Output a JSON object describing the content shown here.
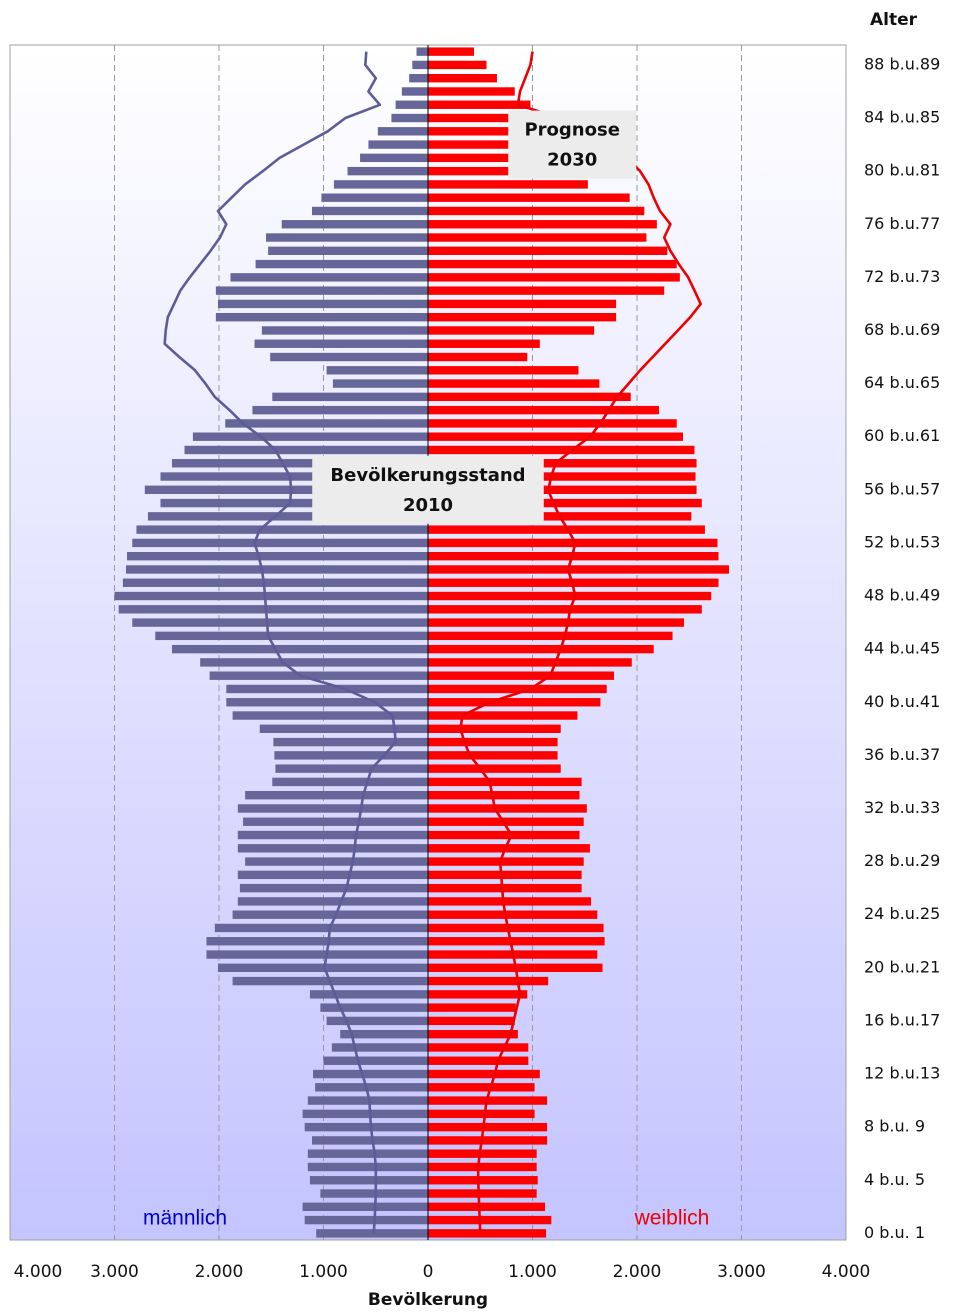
{
  "chart_data": {
    "type": "population-pyramid",
    "xlabel": "Bevölkerung",
    "ylabel": "Alter",
    "xlim": [
      -4000,
      4000
    ],
    "xticks": [
      {
        "value": -4000,
        "label": "4.000"
      },
      {
        "value": -3000,
        "label": "3.000"
      },
      {
        "value": -2000,
        "label": "2.000"
      },
      {
        "value": -1000,
        "label": "1.000"
      },
      0,
      {
        "value": 1000,
        "label": "1.000"
      },
      {
        "value": 2000,
        "label": "2.000"
      },
      {
        "value": 3000,
        "label": "3.000"
      },
      {
        "value": 4000,
        "label": "4.000"
      }
    ],
    "grid": true,
    "categories": [
      "0 b.u. 1",
      null,
      null,
      null,
      "4 b.u. 5",
      null,
      null,
      null,
      "8 b.u. 9",
      null,
      null,
      null,
      "12 b.u.13",
      null,
      null,
      null,
      "16 b.u.17",
      null,
      null,
      null,
      "20 b.u.21",
      null,
      null,
      null,
      "24 b.u.25",
      null,
      null,
      null,
      "28 b.u.29",
      null,
      null,
      null,
      "32 b.u.33",
      null,
      null,
      null,
      "36 b.u.37",
      null,
      null,
      null,
      "40 b.u.41",
      null,
      null,
      null,
      "44 b.u.45",
      null,
      null,
      null,
      "48 b.u.49",
      null,
      null,
      null,
      "52 b.u.53",
      null,
      null,
      null,
      "56 b.u.57",
      null,
      null,
      null,
      "60 b.u.61",
      null,
      null,
      null,
      "64 b.u.65",
      null,
      null,
      null,
      "68 b.u.69",
      null,
      null,
      null,
      "72 b.u.73",
      null,
      null,
      null,
      "76 b.u.77",
      null,
      null,
      null,
      "80 b.u.81",
      null,
      null,
      null,
      "84 b.u.85",
      null,
      null,
      null,
      "88 b.u.89",
      null
    ],
    "series": [
      {
        "name": "männlich",
        "type": "bar",
        "color": "#666699",
        "label_color": "#0000cc",
        "values": [
          -1070,
          -1180,
          -1200,
          -1030,
          -1130,
          -1150,
          -1150,
          -1110,
          -1180,
          -1200,
          -1150,
          -1080,
          -1100,
          -1000,
          -920,
          -840,
          -970,
          -1030,
          -1130,
          -1870,
          -2010,
          -2120,
          -2120,
          -2040,
          -1870,
          -1820,
          -1800,
          -1820,
          -1750,
          -1820,
          -1820,
          -1770,
          -1820,
          -1750,
          -1490,
          -1460,
          -1470,
          -1480,
          -1610,
          -1870,
          -1930,
          -1930,
          -2090,
          -2180,
          -2450,
          -2610,
          -2830,
          -2960,
          -3000,
          -2920,
          -2890,
          -2880,
          -2830,
          -2790,
          -2680,
          -2560,
          -2710,
          -2560,
          -2450,
          -2330,
          -2250,
          -1940,
          -1680,
          -1490,
          -910,
          -970,
          -1510,
          -1660,
          -1590,
          -2030,
          -2010,
          -2030,
          -1890,
          -1650,
          -1530,
          -1550,
          -1400,
          -1110,
          -1020,
          -900,
          -770,
          -650,
          -570,
          -480,
          -350,
          -310,
          -250,
          -180,
          -150,
          -110
        ]
      },
      {
        "name": "weiblich",
        "type": "bar",
        "color": "#ff0000",
        "label_color": "#ee0000",
        "values": [
          1130,
          1180,
          1120,
          1040,
          1050,
          1040,
          1040,
          1140,
          1140,
          1020,
          1140,
          1020,
          1070,
          960,
          960,
          860,
          830,
          840,
          950,
          1150,
          1670,
          1620,
          1690,
          1680,
          1620,
          1560,
          1470,
          1470,
          1490,
          1550,
          1450,
          1490,
          1520,
          1450,
          1470,
          1270,
          1240,
          1240,
          1270,
          1430,
          1650,
          1710,
          1780,
          1950,
          2160,
          2340,
          2450,
          2620,
          2710,
          2780,
          2880,
          2780,
          2770,
          2650,
          2520,
          2620,
          2570,
          2560,
          2570,
          2550,
          2440,
          2380,
          2210,
          1940,
          1640,
          1440,
          950,
          1070,
          1590,
          1800,
          1800,
          2260,
          2410,
          2380,
          2290,
          2090,
          2190,
          2070,
          1930,
          1530,
          1490,
          1450,
          1260,
          1170,
          1070,
          980,
          830,
          660,
          560,
          440
        ]
      },
      {
        "type": "line",
        "color": "#5c5c99",
        "values": [
          -520,
          -510,
          -505,
          -500,
          -500,
          -500,
          -510,
          -530,
          -545,
          -555,
          -560,
          -590,
          -630,
          -670,
          -700,
          -730,
          -780,
          -840,
          -890,
          -940,
          -990,
          -970,
          -950,
          -940,
          -880,
          -830,
          -780,
          -750,
          -720,
          -700,
          -690,
          -660,
          -640,
          -620,
          -580,
          -540,
          -420,
          -310,
          -320,
          -340,
          -510,
          -790,
          -1220,
          -1390,
          -1460,
          -1530,
          -1540,
          -1550,
          -1560,
          -1570,
          -1590,
          -1620,
          -1660,
          -1610,
          -1460,
          -1320,
          -1310,
          -1320,
          -1390,
          -1460,
          -1600,
          -1770,
          -1900,
          -2040,
          -2130,
          -2230,
          -2380,
          -2520,
          -2510,
          -2490,
          -2430,
          -2370,
          -2280,
          -2180,
          -2080,
          -1990,
          -1930,
          -2010,
          -1880,
          -1750,
          -1580,
          -1420,
          -1190,
          -960,
          -790,
          -460,
          -570,
          -500,
          -600,
          -590
        ]
      },
      {
        "type": "line",
        "color": "#ee0000",
        "values": [
          500,
          495,
          490,
          485,
          480,
          480,
          495,
          515,
          530,
          545,
          560,
          600,
          640,
          670,
          730,
          790,
          820,
          850,
          880,
          860,
          840,
          815,
          790,
          765,
          740,
          720,
          710,
          700,
          690,
          740,
          800,
          720,
          640,
          615,
          590,
          500,
          400,
          350,
          310,
          330,
          590,
          980,
          1170,
          1220,
          1270,
          1310,
          1340,
          1360,
          1410,
          1380,
          1340,
          1380,
          1410,
          1340,
          1260,
          1200,
          1150,
          1180,
          1220,
          1380,
          1550,
          1650,
          1730,
          1810,
          1920,
          2030,
          2150,
          2270,
          2390,
          2510,
          2610,
          2550,
          2490,
          2400,
          2320,
          2260,
          2320,
          2220,
          2160,
          2110,
          2030,
          1900,
          1750,
          1550,
          1260,
          860,
          880,
          930,
          980,
          1000
        ]
      }
    ],
    "annotations": [
      {
        "lines": [
          "Prognose",
          "2030"
        ],
        "age": 82,
        "value": 1380
      },
      {
        "lines": [
          "Bevölkerungsstand",
          "2010"
        ],
        "age": 56,
        "value": 0
      }
    ]
  }
}
